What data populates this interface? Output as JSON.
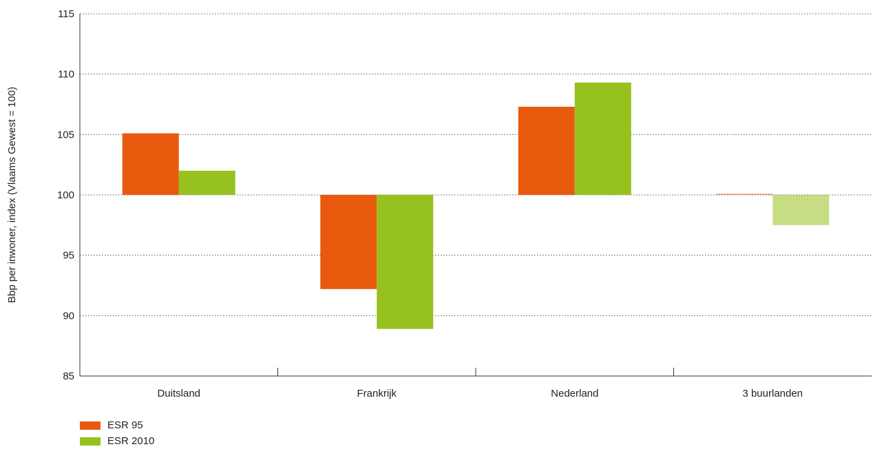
{
  "chart_data": {
    "type": "bar",
    "ylabel": "Bbp per inwoner, index (Vlaams Gewest = 100)",
    "ylim": [
      85,
      115
    ],
    "yticks": [
      85,
      90,
      95,
      100,
      105,
      110,
      115
    ],
    "baseline": 100,
    "grid": true,
    "legend_position": "bottom-left",
    "categories": [
      "Duitsland",
      "Frankrijk",
      "Nederland",
      "3 buurlanden"
    ],
    "series": [
      {
        "name": "ESR 95",
        "color": "#e85b0e",
        "values": [
          105.1,
          92.2,
          107.3,
          100.1
        ]
      },
      {
        "name": "ESR 2010",
        "color": "#97c11f",
        "values": [
          102.0,
          88.9,
          109.3,
          97.5
        ]
      }
    ]
  }
}
